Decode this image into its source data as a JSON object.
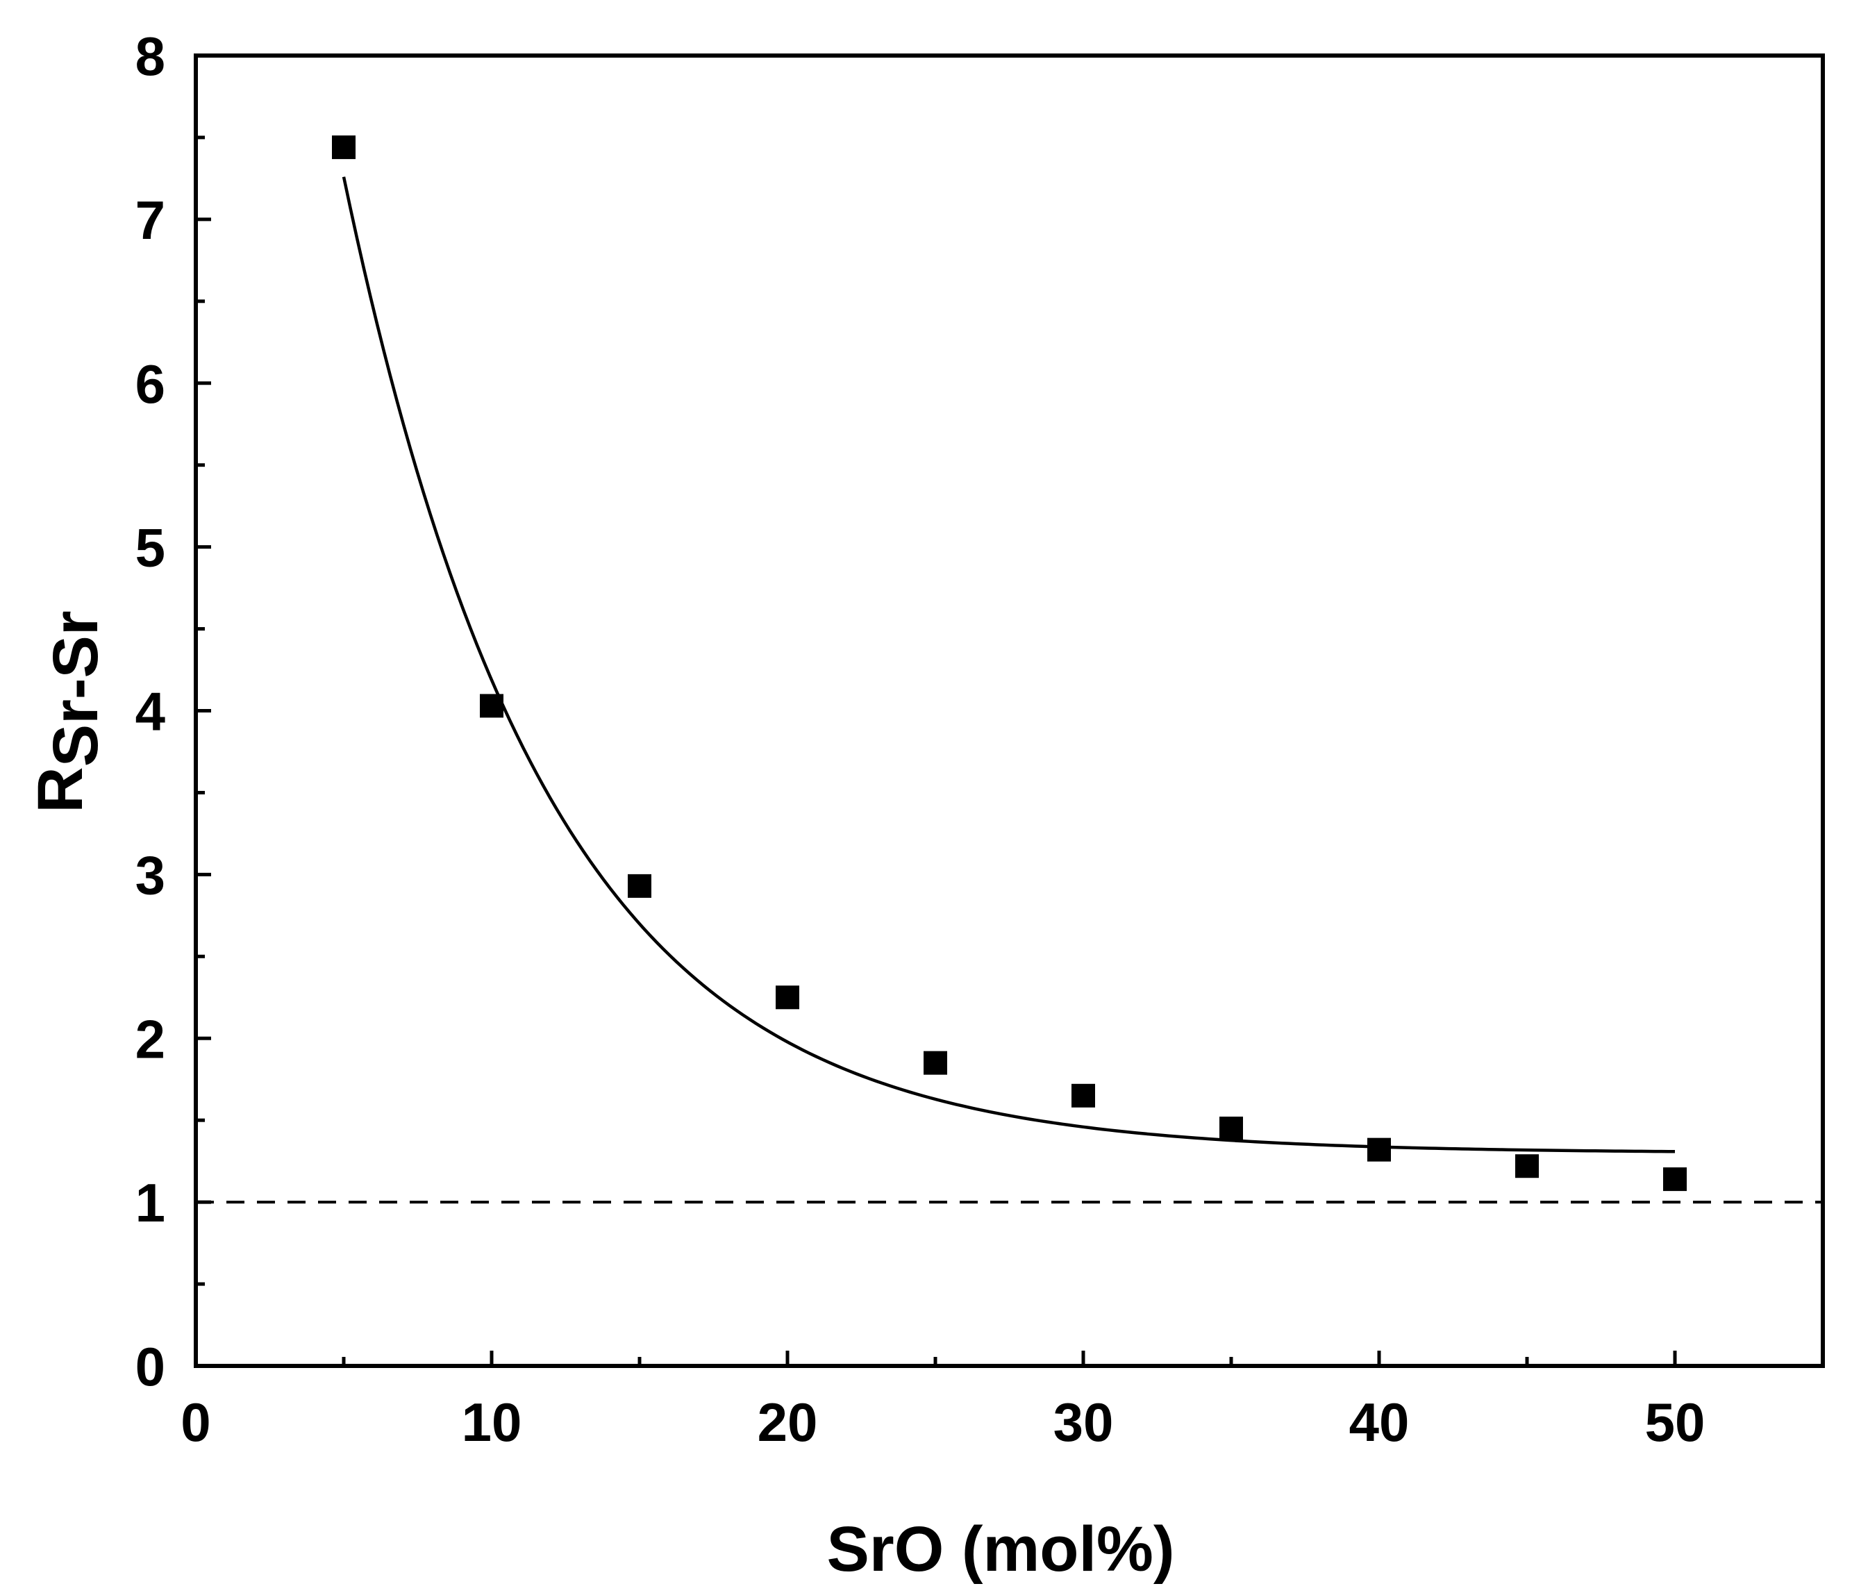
{
  "chart_data": {
    "type": "scatter",
    "title": "",
    "xlabel": "SrO (mol%)",
    "ylabel": {
      "main": "R",
      "subscript": "Sr-Sr"
    },
    "xlim": [
      0,
      55
    ],
    "ylim": [
      0,
      8
    ],
    "x_ticks": [
      0,
      10,
      20,
      30,
      40,
      50
    ],
    "y_ticks": [
      0,
      1,
      2,
      3,
      4,
      5,
      6,
      7,
      8
    ],
    "x_tick_labels": [
      "0",
      "10",
      "20",
      "30",
      "40",
      "50"
    ],
    "y_tick_labels": [
      "0",
      "1",
      "2",
      "3",
      "4",
      "5",
      "6",
      "7",
      "8"
    ],
    "x_minor_step": 5,
    "y_minor_step": 0.5,
    "grid": false,
    "series": [
      {
        "name": "data",
        "marker": "square",
        "color": "#000000",
        "x": [
          5,
          10,
          15,
          20,
          25,
          30,
          35,
          40,
          45,
          50
        ],
        "y": [
          7.44,
          4.03,
          2.93,
          2.25,
          1.85,
          1.65,
          1.45,
          1.32,
          1.22,
          1.14
        ]
      },
      {
        "name": "fit",
        "style": "solid-line",
        "color": "#000000",
        "equation": "y = 1.30 + 12.3 * exp(-x / 6.9)",
        "x_range": [
          5,
          50
        ]
      },
      {
        "name": "reference",
        "style": "dashed-line",
        "color": "#000000",
        "y": 1
      }
    ]
  }
}
